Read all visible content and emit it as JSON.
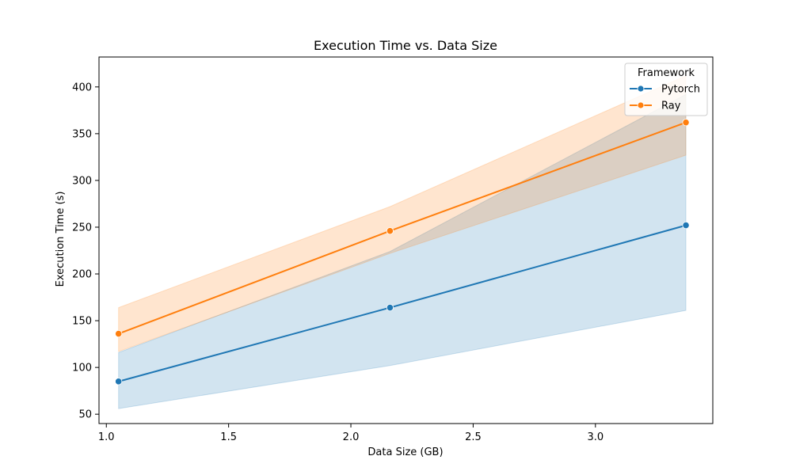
{
  "chart_data": {
    "type": "line",
    "title": "Execution Time vs. Data Size",
    "xlabel": "Data Size (GB)",
    "ylabel": "Execution Time (s)",
    "xlim": [
      0.97,
      3.48
    ],
    "ylim": [
      40,
      432
    ],
    "xticks": [
      1.0,
      1.5,
      2.0,
      2.5,
      3.0
    ],
    "xtick_labels": [
      "1.0",
      "1.5",
      "2.0",
      "2.5",
      "3.0"
    ],
    "yticks": [
      50,
      100,
      150,
      200,
      250,
      300,
      350,
      400
    ],
    "ytick_labels": [
      "50",
      "100",
      "150",
      "200",
      "250",
      "300",
      "350",
      "400"
    ],
    "grid": false,
    "legend": {
      "title": "Framework",
      "placement": "top-right"
    },
    "series": [
      {
        "name": "Pytorch",
        "color": "#1f77b4",
        "x": [
          1.05,
          2.16,
          3.37
        ],
        "y": [
          85,
          164,
          252
        ],
        "ci_lower": [
          56,
          102,
          161
        ],
        "ci_upper": [
          116,
          224,
          392
        ]
      },
      {
        "name": "Ray",
        "color": "#ff7f0e",
        "x": [
          1.05,
          2.16,
          3.37
        ],
        "y": [
          136,
          246,
          362
        ],
        "ci_lower": [
          117,
          222,
          327
        ],
        "ci_upper": [
          164,
          272,
          412
        ]
      }
    ]
  }
}
